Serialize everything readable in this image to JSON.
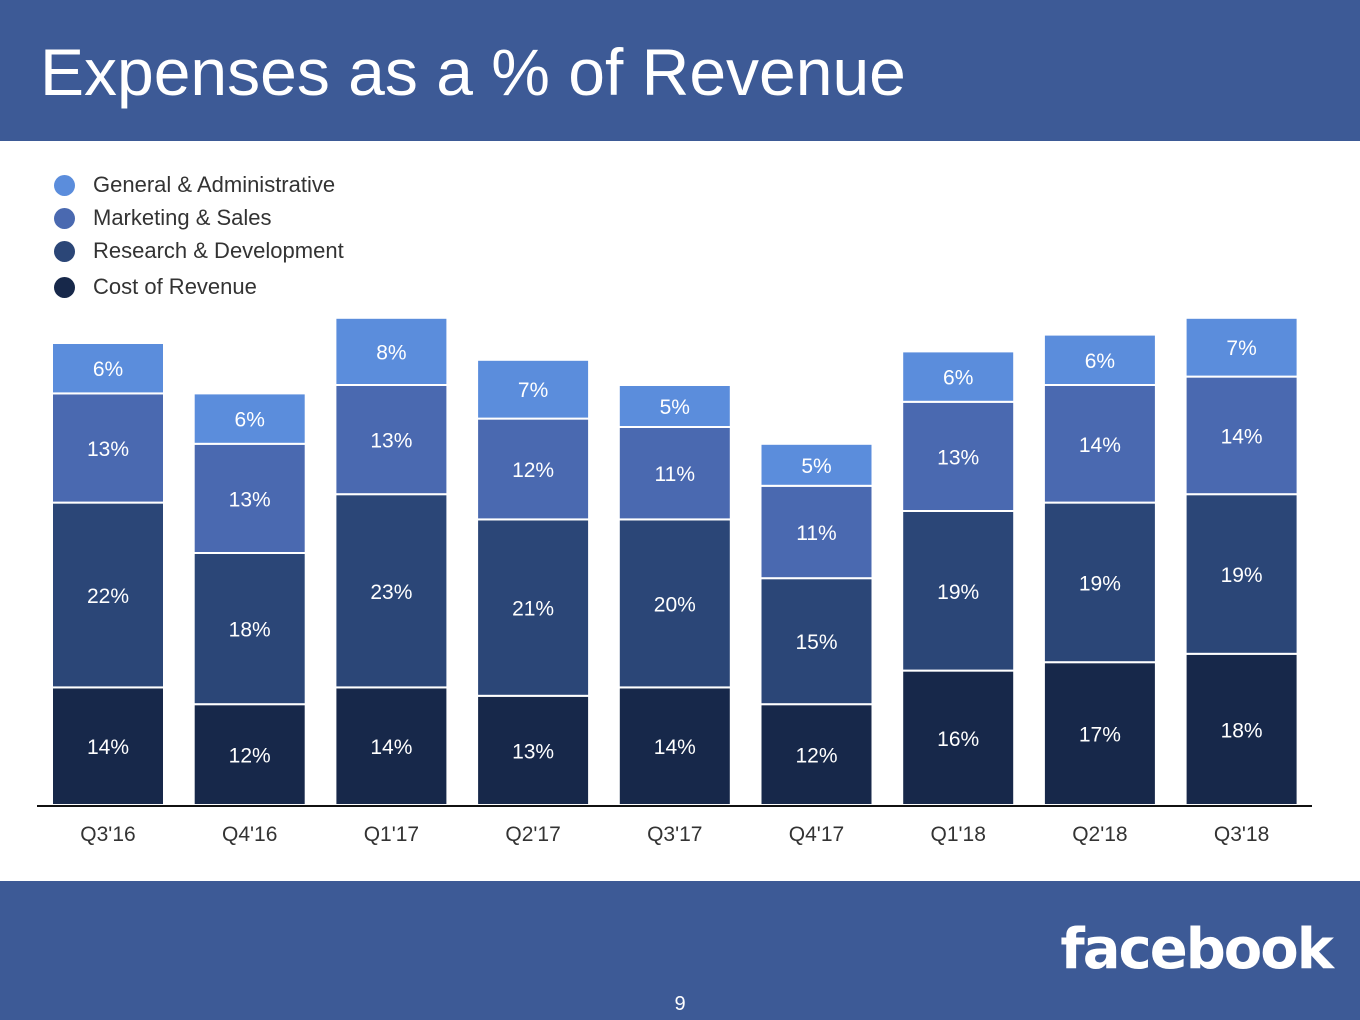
{
  "slide": {
    "title": "Expenses as a % of Revenue",
    "logo_text": "facebook",
    "page_number": "9",
    "header_color": "#3d5a96"
  },
  "chart_data": {
    "type": "bar",
    "stacked": true,
    "categories": [
      "Q3'16",
      "Q4'16",
      "Q1'17",
      "Q2'17",
      "Q3'17",
      "Q4'17",
      "Q1'18",
      "Q2'18",
      "Q3'18"
    ],
    "series": [
      {
        "name": "Cost of Revenue",
        "color": "#17284a",
        "values": [
          14,
          12,
          14,
          13,
          14,
          12,
          16,
          17,
          18
        ]
      },
      {
        "name": "Research & Development",
        "color": "#2b4677",
        "values": [
          22,
          18,
          23,
          21,
          20,
          15,
          19,
          19,
          19
        ]
      },
      {
        "name": "Marketing & Sales",
        "color": "#4a69b0",
        "values": [
          13,
          13,
          13,
          12,
          11,
          11,
          13,
          14,
          14
        ]
      },
      {
        "name": "General & Administrative",
        "color": "#5b8ddc",
        "values": [
          6,
          6,
          8,
          7,
          5,
          5,
          6,
          6,
          7
        ]
      }
    ],
    "value_suffix": "%",
    "legend_order": [
      "General & Administrative",
      "Marketing & Sales",
      "Research & Development",
      "Cost of Revenue"
    ],
    "legend_position": "top-left",
    "grid": false,
    "xlabel": "",
    "ylabel": ""
  }
}
